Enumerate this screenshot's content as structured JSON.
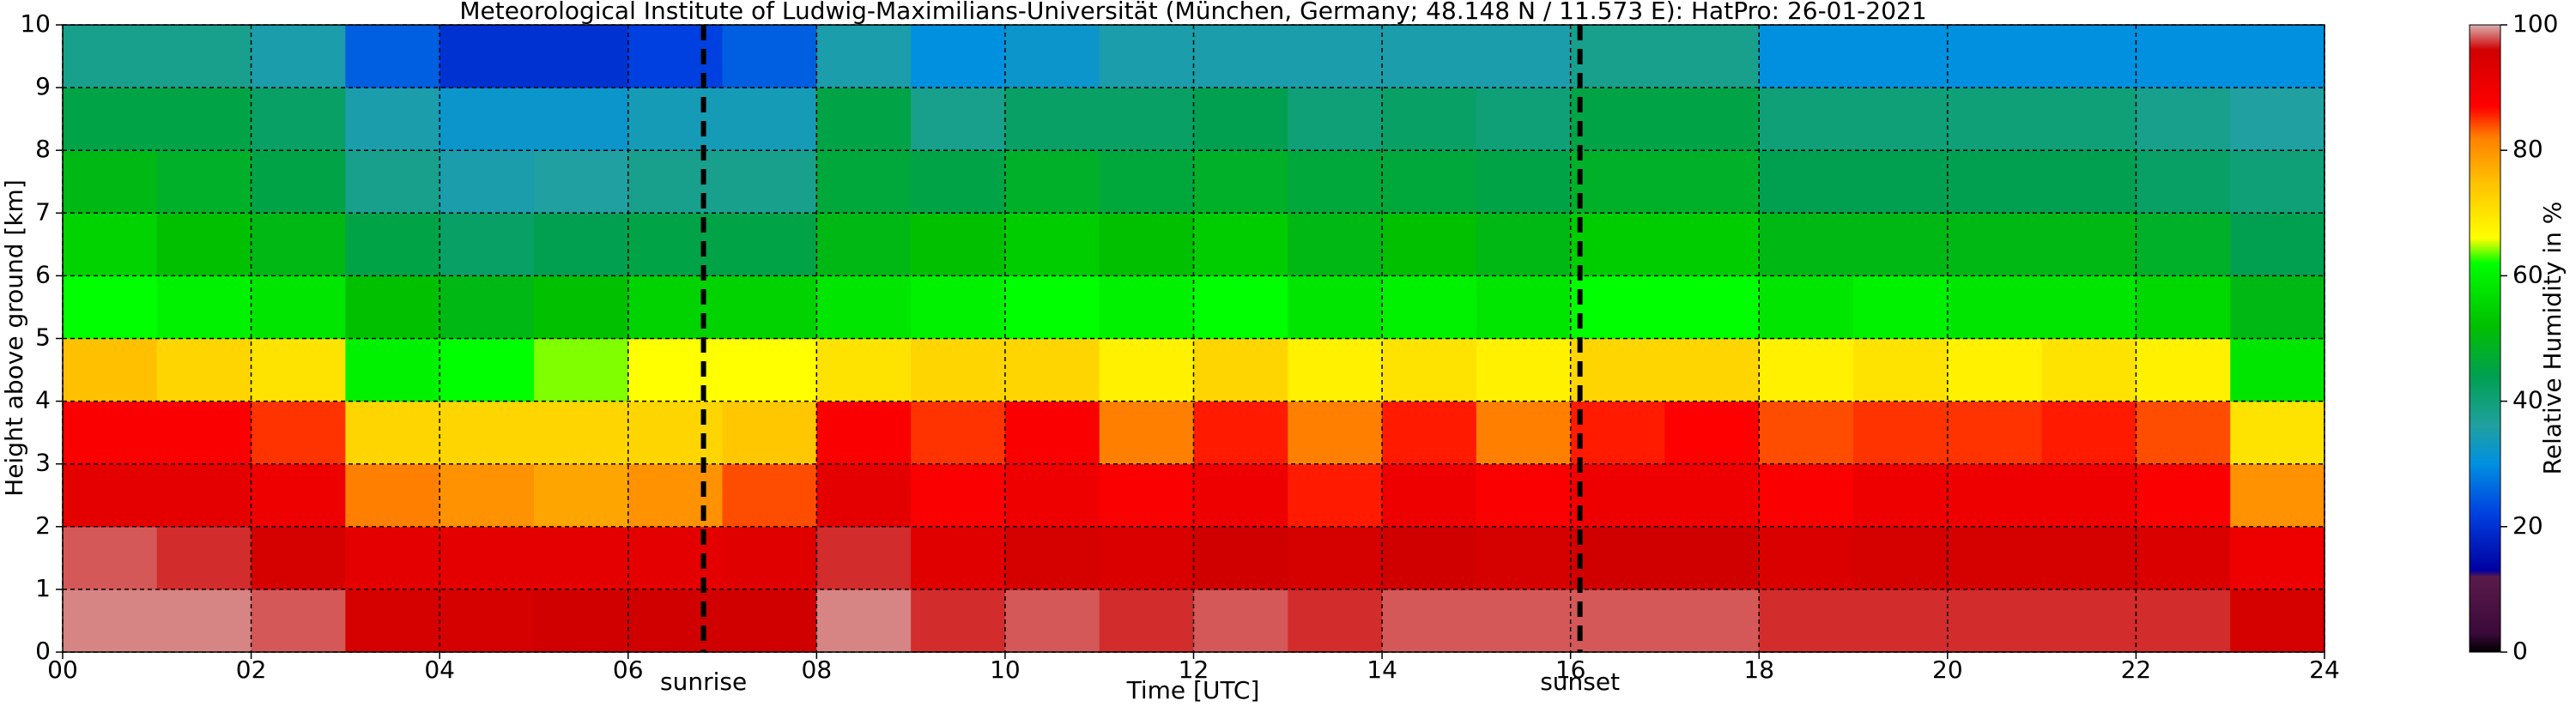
{
  "chart_data": {
    "type": "heatmap",
    "title": "Meteorological Institute of Ludwig-Maximilians-Universität (München, Germany; 48.148 N / 11.573 E):    HatPro: 26-01-2021",
    "xlabel": "Time [UTC]",
    "ylabel": "Height above ground [km]",
    "colorbar_label": "Relative Humidity in %",
    "xbins": [
      0,
      1,
      2,
      3,
      4,
      5,
      6,
      7,
      8,
      9,
      10,
      11,
      12,
      13,
      14,
      15,
      16,
      17,
      18,
      19,
      20,
      21,
      22,
      23,
      24
    ],
    "ybins": [
      0,
      1,
      2,
      3,
      4,
      5,
      6,
      7,
      8,
      9,
      10
    ],
    "z": [
      [
        99,
        98,
        92,
        88,
        75,
        62,
        55,
        50,
        45,
        38
      ],
      [
        99,
        97,
        92,
        88,
        72,
        60,
        52,
        48,
        45,
        38
      ],
      [
        98,
        95,
        90,
        85,
        70,
        58,
        50,
        45,
        42,
        35
      ],
      [
        95,
        92,
        82,
        72,
        60,
        52,
        45,
        38,
        35,
        25
      ],
      [
        95,
        92,
        80,
        72,
        62,
        50,
        42,
        35,
        32,
        20
      ],
      [
        96,
        92,
        78,
        72,
        64,
        52,
        44,
        36,
        32,
        20
      ],
      [
        96,
        92,
        80,
        72,
        66,
        55,
        45,
        38,
        34,
        22
      ],
      [
        96,
        93,
        84,
        74,
        66,
        55,
        45,
        38,
        34,
        25
      ],
      [
        99,
        97,
        92,
        88,
        70,
        58,
        50,
        46,
        45,
        35
      ],
      [
        97,
        93,
        88,
        85,
        72,
        60,
        52,
        45,
        38,
        30
      ],
      [
        98,
        95,
        90,
        88,
        72,
        62,
        54,
        48,
        42,
        32
      ],
      [
        97,
        94,
        88,
        82,
        68,
        60,
        52,
        46,
        42,
        35
      ],
      [
        98,
        96,
        90,
        86,
        72,
        62,
        54,
        48,
        44,
        35
      ],
      [
        97,
        95,
        86,
        82,
        68,
        58,
        50,
        46,
        40,
        35
      ],
      [
        98,
        96,
        90,
        86,
        70,
        60,
        52,
        46,
        42,
        35
      ],
      [
        98,
        95,
        88,
        82,
        68,
        58,
        50,
        45,
        40,
        35
      ],
      [
        98,
        96,
        90,
        86,
        72,
        62,
        54,
        48,
        45,
        38
      ],
      [
        98,
        96,
        90,
        87,
        72,
        62,
        54,
        48,
        45,
        38
      ],
      [
        97,
        94,
        88,
        84,
        68,
        58,
        50,
        44,
        40,
        30
      ],
      [
        97,
        95,
        90,
        85,
        70,
        60,
        50,
        44,
        40,
        30
      ],
      [
        97,
        95,
        90,
        85,
        68,
        58,
        50,
        44,
        40,
        30
      ],
      [
        97,
        95,
        90,
        86,
        70,
        58,
        50,
        44,
        40,
        30
      ],
      [
        97,
        94,
        88,
        84,
        68,
        56,
        48,
        42,
        38,
        30
      ],
      [
        95,
        90,
        80,
        70,
        58,
        50,
        44,
        40,
        36,
        30
      ]
    ],
    "xlim": [
      0,
      24
    ],
    "ylim": [
      0,
      10
    ],
    "xticks": [
      {
        "value": 0,
        "label": "00"
      },
      {
        "value": 2,
        "label": "02"
      },
      {
        "value": 4,
        "label": "04"
      },
      {
        "value": 6,
        "label": "06"
      },
      {
        "value": 8,
        "label": "08"
      },
      10,
      12,
      14,
      16,
      18,
      20,
      22,
      24
    ],
    "yticks": [
      0,
      1,
      2,
      3,
      4,
      5,
      6,
      7,
      8,
      9,
      10
    ],
    "clim": [
      0,
      100
    ],
    "cticks": [
      0,
      20,
      40,
      60,
      80,
      100
    ],
    "grid": true,
    "colorscale": [
      [
        0,
        "#000000"
      ],
      [
        3,
        "#3a0a3a"
      ],
      [
        12,
        "#5a1a4a"
      ],
      [
        13,
        "#0000a0"
      ],
      [
        22,
        "#0040e0"
      ],
      [
        30,
        "#0090e0"
      ],
      [
        36,
        "#20a0a0"
      ],
      [
        44,
        "#00a050"
      ],
      [
        52,
        "#00c000"
      ],
      [
        62,
        "#00ff00"
      ],
      [
        66,
        "#ffff00"
      ],
      [
        75,
        "#ffc000"
      ],
      [
        82,
        "#ff8000"
      ],
      [
        87,
        "#ff0000"
      ],
      [
        96,
        "#d00000"
      ],
      [
        100,
        "#d8b0b0"
      ]
    ],
    "annotations": [
      {
        "text": "sunrise",
        "x": 6.8
      },
      {
        "text": "sunset",
        "x": 16.1
      }
    ]
  }
}
